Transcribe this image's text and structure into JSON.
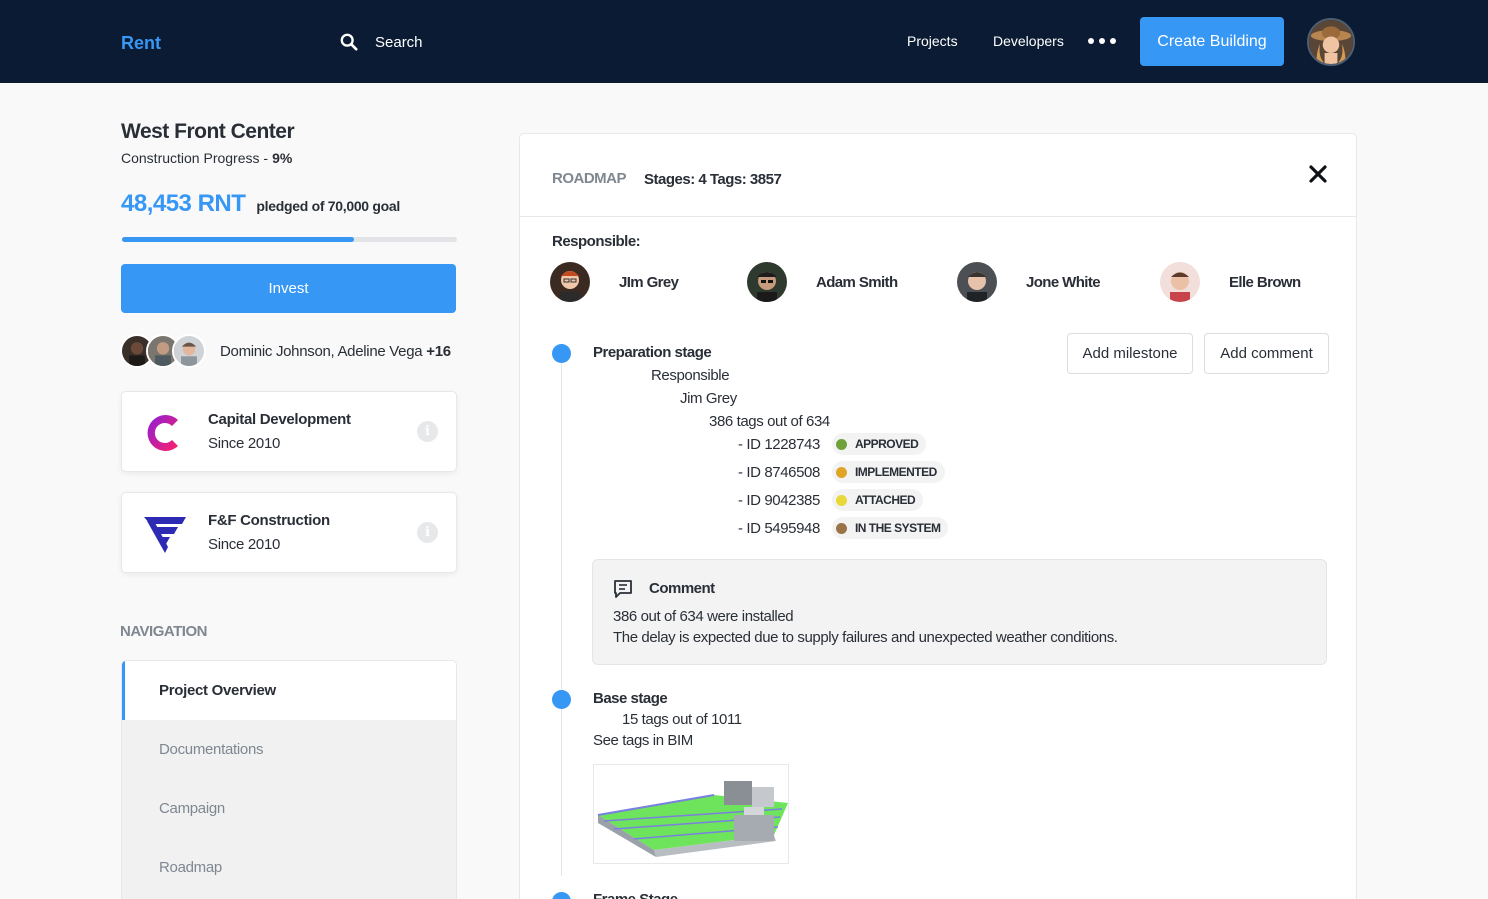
{
  "header": {
    "brand": "Rent",
    "search_label": "Search",
    "nav": [
      "Projects",
      "Developers"
    ],
    "create_button": "Create Building",
    "accent_color": "#3797f5",
    "background_color": "#0a1b33"
  },
  "project": {
    "title": "West Front Center",
    "progress_label": "Construction Progress -",
    "progress_value": "9%",
    "pledged_amount": "48,453 RNT",
    "pledged_goal": "pledged of 70,000 goal",
    "funding_fraction": 0.692,
    "invest_button": "Invest",
    "backers_names": "Dominic Johnson, Adeline Vega",
    "backers_more": "+16"
  },
  "companies": [
    {
      "name": "Capital Development",
      "since": "Since 2010",
      "icon": "capital-logo"
    },
    {
      "name": "F&F Construction",
      "since": "Since 2010",
      "icon": "ff-logo"
    }
  ],
  "navigation": {
    "heading": "NAVIGATION",
    "items": [
      "Project Overview",
      "Documentations",
      "Campaign",
      "Roadmap"
    ],
    "active": "Project Overview"
  },
  "roadmap": {
    "label": "ROADMAP",
    "stats": "Stages: 4 Tags: 3857",
    "responsible_label": "Responsible:",
    "people": [
      "JIm Grey",
      "Adam Smith",
      "Jone White",
      "Elle Brown"
    ],
    "add_milestone": "Add milestone",
    "add_comment": "Add comment",
    "stage1": {
      "title": "Preparation stage",
      "responsible_label": "Responsible",
      "responsible_name": "Jim Grey",
      "tags_summary": "386 tags out of 634",
      "tags": [
        {
          "id": "- ID 1228743",
          "status": "APPROVED",
          "color": "#6fa23b"
        },
        {
          "id": "- ID 8746508",
          "status": "IMPLEMENTED",
          "color": "#e0a527"
        },
        {
          "id": "- ID 9042385",
          "status": "ATTACHED",
          "color": "#e8d83a"
        },
        {
          "id": "- ID 5495948",
          "status": "IN THE SYSTEM",
          "color": "#9a7347"
        }
      ]
    },
    "comment": {
      "title": "Comment",
      "line1": "386 out of 634 were installed",
      "line2": "The delay is expected due to supply failures and unexpected weather conditions."
    },
    "stage2": {
      "title": "Base stage",
      "tags_summary": "15 tags out of 1011",
      "bim_link": "See tags in BIM"
    },
    "stage3": {
      "title": "Frame Stage"
    }
  }
}
